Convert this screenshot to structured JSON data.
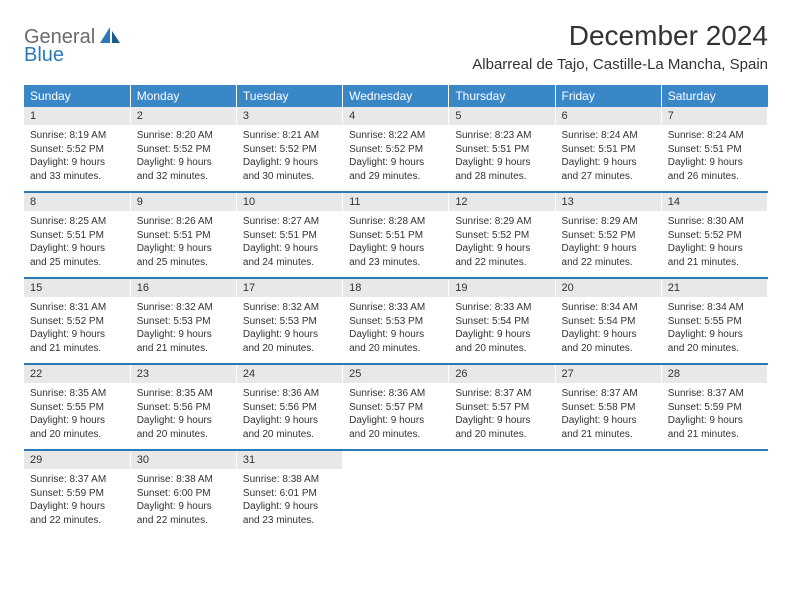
{
  "brand": {
    "part1": "General",
    "part2": "Blue"
  },
  "title": "December 2024",
  "location": "Albarreal de Tajo, Castille-La Mancha, Spain",
  "colors": {
    "header_bg": "#3a87c8",
    "header_text": "#ffffff",
    "daynum_bg": "#e8e8e8",
    "border": "#2b7ab8",
    "brand_gray": "#6b6b6b",
    "brand_blue": "#2b7ab8",
    "text": "#333333",
    "background": "#ffffff"
  },
  "weekdays": [
    "Sunday",
    "Monday",
    "Tuesday",
    "Wednesday",
    "Thursday",
    "Friday",
    "Saturday"
  ],
  "weeks": [
    [
      {
        "num": "1",
        "sunrise": "Sunrise: 8:19 AM",
        "sunset": "Sunset: 5:52 PM",
        "daylight1": "Daylight: 9 hours",
        "daylight2": "and 33 minutes."
      },
      {
        "num": "2",
        "sunrise": "Sunrise: 8:20 AM",
        "sunset": "Sunset: 5:52 PM",
        "daylight1": "Daylight: 9 hours",
        "daylight2": "and 32 minutes."
      },
      {
        "num": "3",
        "sunrise": "Sunrise: 8:21 AM",
        "sunset": "Sunset: 5:52 PM",
        "daylight1": "Daylight: 9 hours",
        "daylight2": "and 30 minutes."
      },
      {
        "num": "4",
        "sunrise": "Sunrise: 8:22 AM",
        "sunset": "Sunset: 5:52 PM",
        "daylight1": "Daylight: 9 hours",
        "daylight2": "and 29 minutes."
      },
      {
        "num": "5",
        "sunrise": "Sunrise: 8:23 AM",
        "sunset": "Sunset: 5:51 PM",
        "daylight1": "Daylight: 9 hours",
        "daylight2": "and 28 minutes."
      },
      {
        "num": "6",
        "sunrise": "Sunrise: 8:24 AM",
        "sunset": "Sunset: 5:51 PM",
        "daylight1": "Daylight: 9 hours",
        "daylight2": "and 27 minutes."
      },
      {
        "num": "7",
        "sunrise": "Sunrise: 8:24 AM",
        "sunset": "Sunset: 5:51 PM",
        "daylight1": "Daylight: 9 hours",
        "daylight2": "and 26 minutes."
      }
    ],
    [
      {
        "num": "8",
        "sunrise": "Sunrise: 8:25 AM",
        "sunset": "Sunset: 5:51 PM",
        "daylight1": "Daylight: 9 hours",
        "daylight2": "and 25 minutes."
      },
      {
        "num": "9",
        "sunrise": "Sunrise: 8:26 AM",
        "sunset": "Sunset: 5:51 PM",
        "daylight1": "Daylight: 9 hours",
        "daylight2": "and 25 minutes."
      },
      {
        "num": "10",
        "sunrise": "Sunrise: 8:27 AM",
        "sunset": "Sunset: 5:51 PM",
        "daylight1": "Daylight: 9 hours",
        "daylight2": "and 24 minutes."
      },
      {
        "num": "11",
        "sunrise": "Sunrise: 8:28 AM",
        "sunset": "Sunset: 5:51 PM",
        "daylight1": "Daylight: 9 hours",
        "daylight2": "and 23 minutes."
      },
      {
        "num": "12",
        "sunrise": "Sunrise: 8:29 AM",
        "sunset": "Sunset: 5:52 PM",
        "daylight1": "Daylight: 9 hours",
        "daylight2": "and 22 minutes."
      },
      {
        "num": "13",
        "sunrise": "Sunrise: 8:29 AM",
        "sunset": "Sunset: 5:52 PM",
        "daylight1": "Daylight: 9 hours",
        "daylight2": "and 22 minutes."
      },
      {
        "num": "14",
        "sunrise": "Sunrise: 8:30 AM",
        "sunset": "Sunset: 5:52 PM",
        "daylight1": "Daylight: 9 hours",
        "daylight2": "and 21 minutes."
      }
    ],
    [
      {
        "num": "15",
        "sunrise": "Sunrise: 8:31 AM",
        "sunset": "Sunset: 5:52 PM",
        "daylight1": "Daylight: 9 hours",
        "daylight2": "and 21 minutes."
      },
      {
        "num": "16",
        "sunrise": "Sunrise: 8:32 AM",
        "sunset": "Sunset: 5:53 PM",
        "daylight1": "Daylight: 9 hours",
        "daylight2": "and 21 minutes."
      },
      {
        "num": "17",
        "sunrise": "Sunrise: 8:32 AM",
        "sunset": "Sunset: 5:53 PM",
        "daylight1": "Daylight: 9 hours",
        "daylight2": "and 20 minutes."
      },
      {
        "num": "18",
        "sunrise": "Sunrise: 8:33 AM",
        "sunset": "Sunset: 5:53 PM",
        "daylight1": "Daylight: 9 hours",
        "daylight2": "and 20 minutes."
      },
      {
        "num": "19",
        "sunrise": "Sunrise: 8:33 AM",
        "sunset": "Sunset: 5:54 PM",
        "daylight1": "Daylight: 9 hours",
        "daylight2": "and 20 minutes."
      },
      {
        "num": "20",
        "sunrise": "Sunrise: 8:34 AM",
        "sunset": "Sunset: 5:54 PM",
        "daylight1": "Daylight: 9 hours",
        "daylight2": "and 20 minutes."
      },
      {
        "num": "21",
        "sunrise": "Sunrise: 8:34 AM",
        "sunset": "Sunset: 5:55 PM",
        "daylight1": "Daylight: 9 hours",
        "daylight2": "and 20 minutes."
      }
    ],
    [
      {
        "num": "22",
        "sunrise": "Sunrise: 8:35 AM",
        "sunset": "Sunset: 5:55 PM",
        "daylight1": "Daylight: 9 hours",
        "daylight2": "and 20 minutes."
      },
      {
        "num": "23",
        "sunrise": "Sunrise: 8:35 AM",
        "sunset": "Sunset: 5:56 PM",
        "daylight1": "Daylight: 9 hours",
        "daylight2": "and 20 minutes."
      },
      {
        "num": "24",
        "sunrise": "Sunrise: 8:36 AM",
        "sunset": "Sunset: 5:56 PM",
        "daylight1": "Daylight: 9 hours",
        "daylight2": "and 20 minutes."
      },
      {
        "num": "25",
        "sunrise": "Sunrise: 8:36 AM",
        "sunset": "Sunset: 5:57 PM",
        "daylight1": "Daylight: 9 hours",
        "daylight2": "and 20 minutes."
      },
      {
        "num": "26",
        "sunrise": "Sunrise: 8:37 AM",
        "sunset": "Sunset: 5:57 PM",
        "daylight1": "Daylight: 9 hours",
        "daylight2": "and 20 minutes."
      },
      {
        "num": "27",
        "sunrise": "Sunrise: 8:37 AM",
        "sunset": "Sunset: 5:58 PM",
        "daylight1": "Daylight: 9 hours",
        "daylight2": "and 21 minutes."
      },
      {
        "num": "28",
        "sunrise": "Sunrise: 8:37 AM",
        "sunset": "Sunset: 5:59 PM",
        "daylight1": "Daylight: 9 hours",
        "daylight2": "and 21 minutes."
      }
    ],
    [
      {
        "num": "29",
        "sunrise": "Sunrise: 8:37 AM",
        "sunset": "Sunset: 5:59 PM",
        "daylight1": "Daylight: 9 hours",
        "daylight2": "and 22 minutes."
      },
      {
        "num": "30",
        "sunrise": "Sunrise: 8:38 AM",
        "sunset": "Sunset: 6:00 PM",
        "daylight1": "Daylight: 9 hours",
        "daylight2": "and 22 minutes."
      },
      {
        "num": "31",
        "sunrise": "Sunrise: 8:38 AM",
        "sunset": "Sunset: 6:01 PM",
        "daylight1": "Daylight: 9 hours",
        "daylight2": "and 23 minutes."
      },
      null,
      null,
      null,
      null
    ]
  ]
}
